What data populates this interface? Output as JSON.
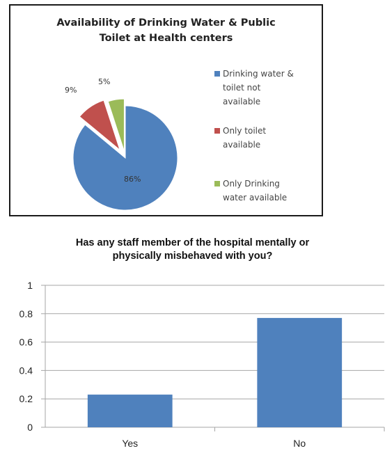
{
  "chart_data": [
    {
      "type": "pie",
      "title": "Availability of Drinking Water & Public Toilet at Health centers",
      "title_lines": [
        "Availability of Drinking Water & Public",
        "Toilet at Health centers"
      ],
      "slices": [
        {
          "label": "Drinking water & toilet not available",
          "value": 86,
          "value_label": "86%",
          "color": "#4f81bd",
          "legend_lines": [
            "Drinking water &",
            "toilet not",
            "available"
          ]
        },
        {
          "label": "Only toilet available",
          "value": 9,
          "value_label": "9%",
          "color": "#c0504d",
          "legend_lines": [
            "Only toilet",
            "available"
          ]
        },
        {
          "label": "Only Drinking water available",
          "value": 5,
          "value_label": "5%",
          "color": "#9bbb59",
          "legend_lines": [
            "Only Drinking",
            "water available"
          ]
        }
      ],
      "legend_position": "right"
    },
    {
      "type": "bar",
      "title": "Has any staff member of the hospital mentally or physically misbehaved with you?",
      "title_lines": [
        "Has any staff member of the hospital mentally or",
        "physically misbehaved with you?"
      ],
      "categories": [
        "Yes",
        "No"
      ],
      "values": [
        0.23,
        0.77
      ],
      "ylim": [
        0,
        1
      ],
      "yticks": [
        "0",
        "0.2",
        "0.4",
        "0.6",
        "0.8",
        "1"
      ],
      "grid": true,
      "color": "#4f81bd"
    }
  ]
}
